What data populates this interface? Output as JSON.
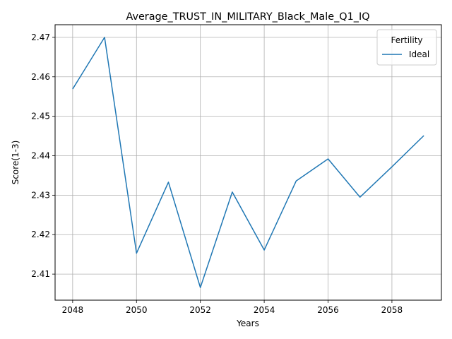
{
  "chart_data": {
    "type": "line",
    "title": "Average_TRUST_IN_MILITARY_Black_Male_Q1_IQ",
    "xlabel": "Years",
    "ylabel": "Score(1-3)",
    "x": [
      2048,
      2049,
      2050,
      2051,
      2052,
      2053,
      2054,
      2055,
      2056,
      2057,
      2058,
      2059
    ],
    "series": [
      {
        "name": "Ideal",
        "color": "#1f77b4",
        "values": [
          2.4569,
          2.47,
          2.4153,
          2.4333,
          2.4066,
          2.4308,
          2.4161,
          2.4336,
          2.4392,
          2.4295,
          2.4372,
          2.4451
        ]
      }
    ],
    "xlim": [
      2047.45,
      2059.55
    ],
    "ylim": [
      2.4034,
      2.4732
    ],
    "xticks": [
      2048,
      2050,
      2052,
      2054,
      2056,
      2058
    ],
    "xtick_labels": [
      "2048",
      "2050",
      "2052",
      "2054",
      "2056",
      "2058"
    ],
    "yticks": [
      2.41,
      2.42,
      2.43,
      2.44,
      2.45,
      2.46,
      2.47
    ],
    "ytick_labels": [
      "2.41",
      "2.42",
      "2.43",
      "2.44",
      "2.45",
      "2.46",
      "2.47"
    ],
    "grid": true,
    "legend": {
      "title": "Fertility",
      "placement": "top-right"
    }
  }
}
